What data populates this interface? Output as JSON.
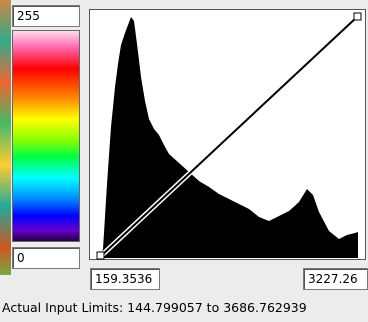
{
  "color_bar": {
    "max_label": "255",
    "min_label": "0"
  },
  "histogram": {
    "input_min": "159.3536",
    "input_max": "3227.26"
  },
  "status": "Actual Input Limits: 144.799057 to 3686.762939"
}
